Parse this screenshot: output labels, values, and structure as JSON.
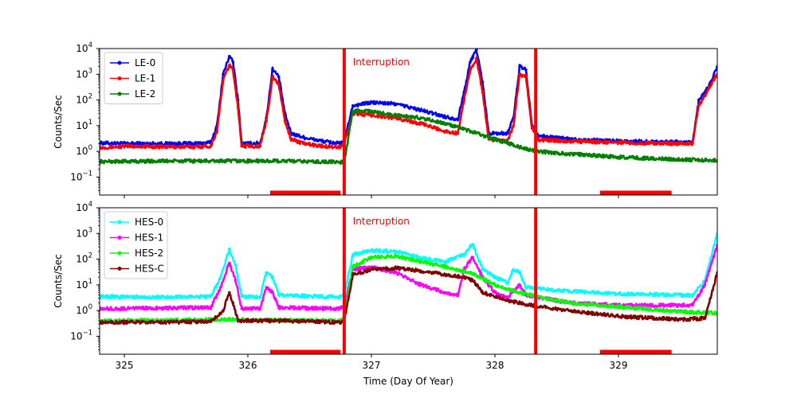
{
  "chart_data": [
    {
      "type": "line",
      "yscale": "log",
      "xlim": [
        324.8,
        329.8
      ],
      "ylim": [
        0.02,
        10000
      ],
      "ylabel": "Counts/Sec",
      "xlabel": "",
      "y_ticks": [
        {
          "value": 0.1,
          "label": "10",
          "exp": "−1"
        },
        {
          "value": 1,
          "label": "10",
          "exp": "0"
        },
        {
          "value": 10,
          "label": "10",
          "exp": "1"
        },
        {
          "value": 100,
          "label": "10",
          "exp": "2"
        },
        {
          "value": 1000,
          "label": "10",
          "exp": "3"
        },
        {
          "value": 10000,
          "label": "10",
          "exp": "4"
        }
      ],
      "annotation": {
        "text": "Interruption",
        "x": 326.85,
        "y": 3000,
        "color": "#ff0000"
      },
      "interruption_lines": [
        326.78,
        328.33
      ],
      "saa_bars": [
        [
          326.18,
          326.75
        ],
        [
          328.85,
          329.43
        ]
      ],
      "legend": {
        "location": "upper-left"
      },
      "series": [
        {
          "name": "LE-0",
          "color": "#0000ff",
          "marker": "circle",
          "points": [
            [
              324.8,
              2.1
            ],
            [
              325.05,
              2.0
            ],
            [
              325.3,
              2.0
            ],
            [
              325.55,
              2.0
            ],
            [
              325.7,
              2.2
            ],
            [
              325.75,
              10
            ],
            [
              325.8,
              1000
            ],
            [
              325.85,
              5000
            ],
            [
              325.88,
              3000
            ],
            [
              325.92,
              100
            ],
            [
              325.95,
              2.0
            ],
            [
              326.1,
              2.1
            ],
            [
              326.15,
              20
            ],
            [
              326.2,
              1600
            ],
            [
              326.25,
              800
            ],
            [
              326.3,
              30
            ],
            [
              326.35,
              5
            ],
            [
              326.45,
              3.5
            ],
            [
              326.6,
              2.5
            ],
            [
              326.75,
              2.0
            ],
            [
              326.78,
              2.5
            ],
            [
              326.85,
              60
            ],
            [
              327.0,
              80
            ],
            [
              327.2,
              70
            ],
            [
              327.4,
              40
            ],
            [
              327.6,
              22
            ],
            [
              327.7,
              18
            ],
            [
              327.75,
              200
            ],
            [
              327.8,
              3000
            ],
            [
              327.85,
              9000
            ],
            [
              327.9,
              500
            ],
            [
              327.95,
              5
            ],
            [
              328.1,
              5
            ],
            [
              328.15,
              20
            ],
            [
              328.2,
              2000
            ],
            [
              328.25,
              1500
            ],
            [
              328.3,
              10
            ],
            [
              328.35,
              4
            ],
            [
              328.6,
              3
            ],
            [
              329.0,
              2.5
            ],
            [
              329.5,
              2.3
            ],
            [
              329.6,
              2.3
            ],
            [
              329.65,
              100
            ],
            [
              329.7,
              200
            ],
            [
              329.75,
              500
            ],
            [
              329.8,
              2000
            ]
          ]
        },
        {
          "name": "LE-1",
          "color": "#ff0000",
          "marker": "square",
          "points": [
            [
              324.8,
              1.4
            ],
            [
              325.05,
              1.6
            ],
            [
              325.3,
              1.5
            ],
            [
              325.55,
              1.5
            ],
            [
              325.7,
              1.6
            ],
            [
              325.75,
              6
            ],
            [
              325.8,
              600
            ],
            [
              325.85,
              2200
            ],
            [
              325.88,
              1500
            ],
            [
              325.92,
              50
            ],
            [
              325.95,
              1.6
            ],
            [
              326.1,
              1.6
            ],
            [
              326.15,
              15
            ],
            [
              326.2,
              800
            ],
            [
              326.25,
              400
            ],
            [
              326.3,
              15
            ],
            [
              326.35,
              3
            ],
            [
              326.45,
              2
            ],
            [
              326.6,
              1.6
            ],
            [
              326.75,
              1.5
            ],
            [
              326.78,
              2
            ],
            [
              326.85,
              30
            ],
            [
              327.0,
              25
            ],
            [
              327.2,
              20
            ],
            [
              327.4,
              12
            ],
            [
              327.6,
              6
            ],
            [
              327.7,
              5
            ],
            [
              327.75,
              100
            ],
            [
              327.8,
              1500
            ],
            [
              327.85,
              4000
            ],
            [
              327.9,
              200
            ],
            [
              327.95,
              3
            ],
            [
              328.1,
              2.5
            ],
            [
              328.15,
              10
            ],
            [
              328.2,
              1000
            ],
            [
              328.25,
              800
            ],
            [
              328.3,
              8
            ],
            [
              328.35,
              2.8
            ],
            [
              328.6,
              2.5
            ],
            [
              329.0,
              2.2
            ],
            [
              329.5,
              2.0
            ],
            [
              329.6,
              2.0
            ],
            [
              329.65,
              60
            ],
            [
              329.7,
              150
            ],
            [
              329.75,
              400
            ],
            [
              329.8,
              1000
            ]
          ]
        },
        {
          "name": "LE-2",
          "color": "#008000",
          "marker": "triangle",
          "points": [
            [
              324.8,
              0.4
            ],
            [
              325.3,
              0.42
            ],
            [
              325.8,
              0.42
            ],
            [
              326.3,
              0.42
            ],
            [
              326.75,
              0.38
            ],
            [
              326.78,
              0.4
            ],
            [
              326.85,
              35
            ],
            [
              326.9,
              40
            ],
            [
              327.0,
              35
            ],
            [
              327.2,
              25
            ],
            [
              327.4,
              20
            ],
            [
              327.6,
              12
            ],
            [
              327.8,
              6
            ],
            [
              328.0,
              3
            ],
            [
              328.2,
              1.5
            ],
            [
              328.33,
              1.0
            ],
            [
              328.6,
              0.8
            ],
            [
              329.0,
              0.6
            ],
            [
              329.4,
              0.5
            ],
            [
              329.8,
              0.45
            ]
          ]
        }
      ]
    },
    {
      "type": "line",
      "yscale": "log",
      "xlim": [
        324.8,
        329.8
      ],
      "ylim": [
        0.02,
        10000
      ],
      "ylabel": "Counts/Sec",
      "xlabel": "Time (Day Of Year)",
      "x_ticks": [
        325,
        326,
        327,
        328,
        329
      ],
      "y_ticks": [
        {
          "value": 0.1,
          "label": "10",
          "exp": "−1"
        },
        {
          "value": 1,
          "label": "10",
          "exp": "0"
        },
        {
          "value": 10,
          "label": "10",
          "exp": "1"
        },
        {
          "value": 100,
          "label": "10",
          "exp": "2"
        },
        {
          "value": 1000,
          "label": "10",
          "exp": "3"
        },
        {
          "value": 10000,
          "label": "10",
          "exp": "4"
        }
      ],
      "annotation": {
        "text": "Interruption",
        "x": 326.85,
        "y": 3000,
        "color": "#ff0000"
      },
      "interruption_lines": [
        326.78,
        328.33
      ],
      "saa_bars": [
        [
          326.18,
          326.75
        ],
        [
          328.85,
          329.43
        ]
      ],
      "legend": {
        "location": "upper-left"
      },
      "series": [
        {
          "name": "HES-0",
          "color": "#00ffff",
          "marker": "triangle",
          "points": [
            [
              324.8,
              3.5
            ],
            [
              325.3,
              3.3
            ],
            [
              325.7,
              3.5
            ],
            [
              325.78,
              20
            ],
            [
              325.85,
              250
            ],
            [
              325.9,
              60
            ],
            [
              325.95,
              3.5
            ],
            [
              326.1,
              3.4
            ],
            [
              326.15,
              30
            ],
            [
              326.2,
              20
            ],
            [
              326.25,
              4
            ],
            [
              326.75,
              3.3
            ],
            [
              326.78,
              4
            ],
            [
              326.85,
              150
            ],
            [
              327.0,
              220
            ],
            [
              327.2,
              200
            ],
            [
              327.4,
              110
            ],
            [
              327.6,
              80
            ],
            [
              327.75,
              150
            ],
            [
              327.82,
              380
            ],
            [
              327.9,
              40
            ],
            [
              328.0,
              20
            ],
            [
              328.1,
              12
            ],
            [
              328.15,
              40
            ],
            [
              328.2,
              30
            ],
            [
              328.25,
              8
            ],
            [
              328.5,
              6
            ],
            [
              329.0,
              4.5
            ],
            [
              329.5,
              4
            ],
            [
              329.6,
              4
            ],
            [
              329.7,
              15
            ],
            [
              329.8,
              1000
            ]
          ]
        },
        {
          "name": "HES-1",
          "color": "#ff00ff",
          "marker": "square",
          "points": [
            [
              324.8,
              1.2
            ],
            [
              325.3,
              1.25
            ],
            [
              325.7,
              1.3
            ],
            [
              325.78,
              8
            ],
            [
              325.85,
              70
            ],
            [
              325.9,
              15
            ],
            [
              325.95,
              1.2
            ],
            [
              326.1,
              1.2
            ],
            [
              326.15,
              8
            ],
            [
              326.2,
              5
            ],
            [
              326.25,
              1.3
            ],
            [
              326.75,
              1.2
            ],
            [
              326.78,
              1.5
            ],
            [
              326.85,
              40
            ],
            [
              327.0,
              50
            ],
            [
              327.2,
              30
            ],
            [
              327.4,
              10
            ],
            [
              327.6,
              5
            ],
            [
              327.7,
              4
            ],
            [
              327.75,
              40
            ],
            [
              327.82,
              120
            ],
            [
              327.9,
              20
            ],
            [
              328.0,
              5
            ],
            [
              328.1,
              3
            ],
            [
              328.15,
              6
            ],
            [
              328.2,
              10
            ],
            [
              328.25,
              4
            ],
            [
              328.4,
              3
            ],
            [
              328.6,
              2
            ],
            [
              329.0,
              1.6
            ],
            [
              329.5,
              1.6
            ],
            [
              329.6,
              1.6
            ],
            [
              329.7,
              10
            ],
            [
              329.8,
              350
            ]
          ]
        },
        {
          "name": "HES-2",
          "color": "#00ff00",
          "marker": "circle",
          "points": [
            [
              324.8,
              0.4
            ],
            [
              325.3,
              0.42
            ],
            [
              325.8,
              0.45
            ],
            [
              326.3,
              0.42
            ],
            [
              326.75,
              0.4
            ],
            [
              326.78,
              0.5
            ],
            [
              326.85,
              50
            ],
            [
              327.0,
              120
            ],
            [
              327.2,
              130
            ],
            [
              327.4,
              80
            ],
            [
              327.6,
              50
            ],
            [
              327.8,
              30
            ],
            [
              328.0,
              10
            ],
            [
              328.2,
              5
            ],
            [
              328.4,
              3
            ],
            [
              328.6,
              2
            ],
            [
              329.0,
              1.4
            ],
            [
              329.5,
              0.9
            ],
            [
              329.8,
              0.8
            ]
          ]
        },
        {
          "name": "HES-C",
          "color": "#800000",
          "marker": "x",
          "points": [
            [
              324.8,
              0.35
            ],
            [
              325.3,
              0.35
            ],
            [
              325.7,
              0.38
            ],
            [
              325.8,
              1.0
            ],
            [
              325.85,
              5
            ],
            [
              325.88,
              2
            ],
            [
              325.92,
              0.4
            ],
            [
              326.3,
              0.4
            ],
            [
              326.75,
              0.35
            ],
            [
              326.78,
              0.4
            ],
            [
              326.85,
              25
            ],
            [
              327.0,
              40
            ],
            [
              327.2,
              45
            ],
            [
              327.4,
              35
            ],
            [
              327.6,
              25
            ],
            [
              327.75,
              20
            ],
            [
              327.82,
              15
            ],
            [
              327.9,
              5
            ],
            [
              328.1,
              2.5
            ],
            [
              328.33,
              1.5
            ],
            [
              328.6,
              1.0
            ],
            [
              329.0,
              0.6
            ],
            [
              329.5,
              0.45
            ],
            [
              329.7,
              0.5
            ],
            [
              329.8,
              30
            ]
          ]
        }
      ]
    }
  ]
}
